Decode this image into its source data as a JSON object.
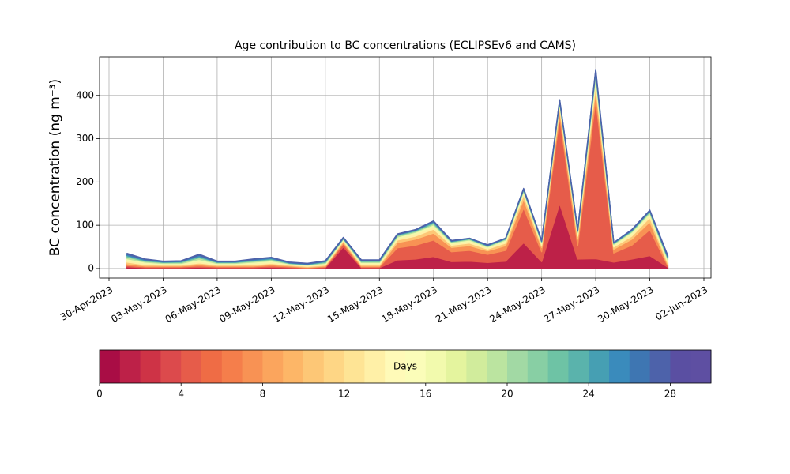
{
  "chart_data": {
    "type": "stacked-area",
    "title": "Age contribution to BC concentrations (ECLIPSEv6 and CAMS)",
    "y_label": "BC concentration (ng m⁻³)",
    "x": [
      "2023-05-01",
      "2023-05-02",
      "2023-05-03",
      "2023-05-04",
      "2023-05-05",
      "2023-05-06",
      "2023-05-07",
      "2023-05-08",
      "2023-05-09",
      "2023-05-10",
      "2023-05-11",
      "2023-05-12",
      "2023-05-13",
      "2023-05-14",
      "2023-05-15",
      "2023-05-16",
      "2023-05-17",
      "2023-05-18",
      "2023-05-19",
      "2023-05-20",
      "2023-05-21",
      "2023-05-22",
      "2023-05-23",
      "2023-05-24",
      "2023-05-25",
      "2023-05-26",
      "2023-05-27",
      "2023-05-28",
      "2023-05-29",
      "2023-05-30",
      "2023-05-31"
    ],
    "series": [
      {
        "color": "#bd2148",
        "values": [
          4,
          2,
          2,
          2,
          3,
          2,
          2,
          2,
          3,
          2,
          1,
          2,
          50,
          2,
          2,
          20,
          22,
          28,
          16,
          17,
          14,
          17,
          60,
          16,
          150,
          22,
          23,
          15,
          22,
          30,
          3
        ]
      },
      {
        "color": "#e65c4a",
        "values": [
          3,
          2,
          2,
          2,
          3,
          2,
          2,
          2,
          3,
          2,
          1,
          2,
          7,
          2,
          2,
          28,
          32,
          38,
          23,
          25,
          19,
          25,
          80,
          23,
          200,
          32,
          368,
          21,
          32,
          60,
          3
        ]
      },
      {
        "color": "#f89254",
        "values": [
          4,
          2,
          2,
          2,
          3,
          2,
          2,
          2,
          3,
          2,
          1,
          2,
          4,
          2,
          2,
          12,
          14,
          16,
          10,
          11,
          8,
          11,
          20,
          10,
          15,
          14,
          23,
          9,
          14,
          18,
          3
        ]
      },
      {
        "color": "#fdc776",
        "values": [
          4,
          3,
          2,
          2,
          4,
          2,
          2,
          3,
          3,
          2,
          2,
          2,
          3,
          3,
          3,
          6,
          7,
          9,
          5,
          6,
          4,
          6,
          10,
          5,
          10,
          7,
          14,
          5,
          7,
          10,
          4
        ]
      },
      {
        "color": "#fff0a7",
        "values": [
          4,
          3,
          2,
          2,
          4,
          2,
          2,
          3,
          3,
          2,
          2,
          2,
          2,
          3,
          3,
          4,
          5,
          6,
          3,
          4,
          3,
          4,
          5,
          3,
          5,
          5,
          9,
          3,
          5,
          6,
          4
        ]
      },
      {
        "color": "#f2faad",
        "values": [
          4,
          3,
          2,
          2,
          4,
          2,
          2,
          3,
          3,
          1,
          1,
          2,
          2,
          2,
          2,
          3,
          4,
          4,
          3,
          3,
          2,
          3,
          4,
          3,
          4,
          4,
          9,
          3,
          4,
          4,
          4
        ]
      },
      {
        "color": "#bbe4a0",
        "values": [
          4,
          2,
          2,
          2,
          4,
          2,
          2,
          2,
          3,
          1,
          1,
          2,
          1,
          2,
          2,
          3,
          2,
          3,
          2,
          2,
          2,
          2,
          2,
          2,
          2,
          2,
          5,
          2,
          2,
          3,
          3
        ]
      },
      {
        "color": "#6ec3a5",
        "values": [
          3,
          2,
          1,
          2,
          3,
          1,
          1,
          2,
          2,
          1,
          1,
          2,
          1,
          2,
          2,
          2,
          2,
          3,
          1,
          1,
          1,
          1,
          2,
          1,
          2,
          2,
          5,
          1,
          2,
          2,
          2
        ]
      },
      {
        "color": "#3a8bbc",
        "values": [
          3,
          2,
          1,
          1,
          3,
          1,
          1,
          2,
          2,
          1,
          1,
          1,
          1,
          1,
          1,
          1,
          1,
          2,
          1,
          1,
          1,
          1,
          1,
          1,
          1,
          1,
          2,
          1,
          1,
          1,
          2
        ]
      },
      {
        "color": "#4d62aa",
        "values": [
          2,
          1,
          1,
          1,
          2,
          1,
          1,
          1,
          1,
          1,
          1,
          1,
          1,
          1,
          1,
          1,
          1,
          1,
          1,
          0,
          1,
          0,
          1,
          1,
          1,
          1,
          2,
          0,
          1,
          1,
          2
        ]
      }
    ],
    "xlim": [
      "2023-04-30",
      "2023-06-02"
    ],
    "xticks": [
      {
        "value": "2023-04-30",
        "label": "30-Apr-2023"
      },
      {
        "value": "2023-05-03",
        "label": "03-May-2023"
      },
      {
        "value": "2023-05-06",
        "label": "06-May-2023"
      },
      {
        "value": "2023-05-09",
        "label": "09-May-2023"
      },
      {
        "value": "2023-05-12",
        "label": "12-May-2023"
      },
      {
        "value": "2023-05-15",
        "label": "15-May-2023"
      },
      {
        "value": "2023-05-18",
        "label": "18-May-2023"
      },
      {
        "value": "2023-05-21",
        "label": "21-May-2023"
      },
      {
        "value": "2023-05-24",
        "label": "24-May-2023"
      },
      {
        "value": "2023-05-27",
        "label": "27-May-2023"
      },
      {
        "value": "2023-05-30",
        "label": "30-May-2023"
      },
      {
        "value": "2023-06-02",
        "label": "02-Jun-2023"
      }
    ],
    "ylim": [
      -22,
      489
    ],
    "yticks": [
      0,
      100,
      200,
      300,
      400
    ],
    "grid": true,
    "colorbar": {
      "label": "Days",
      "lim": [
        0,
        30
      ],
      "ticks": [
        0,
        4,
        8,
        12,
        16,
        20,
        24,
        28
      ],
      "colors": [
        "#a90d45",
        "#bd2148",
        "#ce3346",
        "#dc4a4c",
        "#e65c4a",
        "#ef6c45",
        "#f57e4b",
        "#f89254",
        "#fba55d",
        "#fdb667",
        "#fdc776",
        "#fed685",
        "#fee495",
        "#fff0a7",
        "#fffab8",
        "#fbfdb9",
        "#f2faad",
        "#e4f49e",
        "#d1ec9c",
        "#bbe4a0",
        "#a2d9a4",
        "#88cfa4",
        "#6ec3a5",
        "#5ab3ac",
        "#469fb3",
        "#3a8bbc",
        "#3e76b2",
        "#4d62aa",
        "#5a4fa2",
        "#5e4fa2"
      ]
    }
  }
}
